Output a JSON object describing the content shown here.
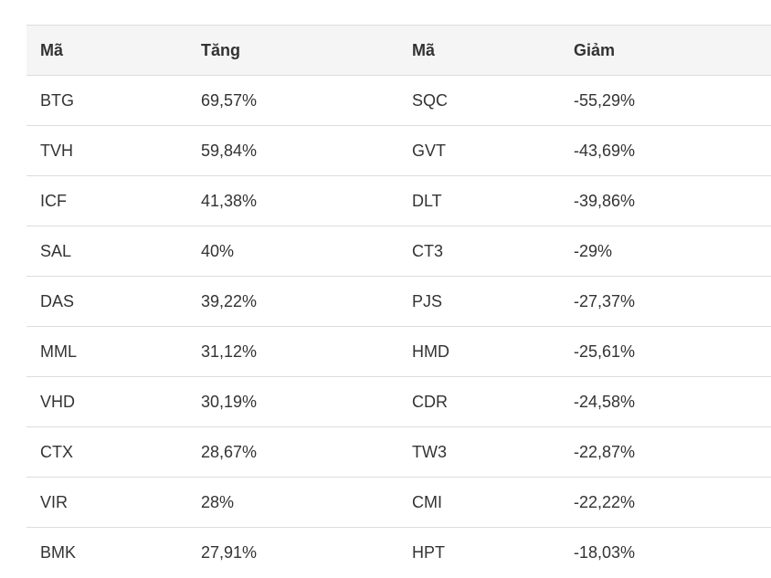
{
  "table": {
    "headers": [
      "Mã",
      "Tăng",
      "Mã",
      "Giảm"
    ],
    "rows": [
      [
        "BTG",
        "69,57%",
        "SQC",
        "-55,29%"
      ],
      [
        "TVH",
        "59,84%",
        "GVT",
        "-43,69%"
      ],
      [
        "ICF",
        "41,38%",
        "DLT",
        "-39,86%"
      ],
      [
        "SAL",
        "40%",
        "CT3",
        "-29%"
      ],
      [
        "DAS",
        "39,22%",
        "PJS",
        "-27,37%"
      ],
      [
        "MML",
        "31,12%",
        "HMD",
        "-25,61%"
      ],
      [
        "VHD",
        "30,19%",
        "CDR",
        "-24,58%"
      ],
      [
        "CTX",
        "28,67%",
        "TW3",
        "-22,87%"
      ],
      [
        "VIR",
        "28%",
        "CMI",
        "-22,22%"
      ],
      [
        "BMK",
        "27,91%",
        "HPT",
        "-18,03%"
      ]
    ]
  }
}
